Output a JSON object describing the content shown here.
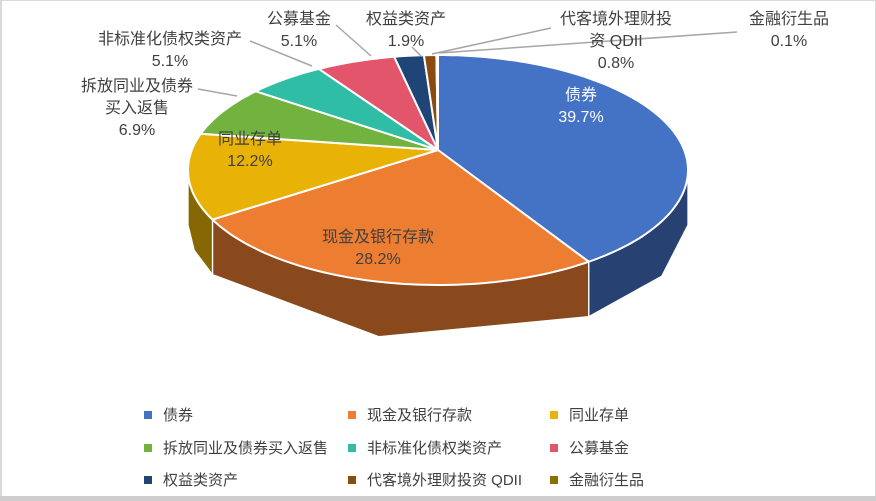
{
  "window": {
    "background": "#FFFFFF",
    "frame_border_color": "#D9D9D9",
    "bottom_edge_color": "#CFCDCD"
  },
  "chart_data": {
    "type": "pie",
    "projection": "3d",
    "title": "",
    "start_angle_deg": 0,
    "direction": "clockwise",
    "legend_position": "bottom",
    "label_text_color": "#404040",
    "leader_line_color": "#A6A6A6",
    "slice_separator_color": "#FFFFFF",
    "slices": [
      {
        "label": "债券",
        "value": 39.7,
        "pct": "39.7%",
        "color": "#4472C4",
        "label_color": "#FFFFFF",
        "label_placement": "inside",
        "label_lines": [
          "债券",
          "39.7%"
        ]
      },
      {
        "label": "现金及银行存款",
        "value": 28.2,
        "pct": "28.2%",
        "color": "#ED7D31",
        "label_color": "#404040",
        "label_placement": "inside",
        "label_lines": [
          "现金及银行存款",
          "28.2%"
        ]
      },
      {
        "label": "同业存单",
        "value": 12.2,
        "pct": "12.2%",
        "color": "#E8B206",
        "label_color": "#404040",
        "label_placement": "inside",
        "label_lines": [
          "同业存单",
          "12.2%"
        ]
      },
      {
        "label": "拆放同业及债券买入返售",
        "value": 6.9,
        "pct": "6.9%",
        "color": "#72B33F",
        "label_color": "#404040",
        "label_placement": "outside",
        "label_lines": [
          "拆放同业及债券",
          "买入返售",
          "6.9%"
        ]
      },
      {
        "label": "非标准化债权类资产",
        "value": 5.1,
        "pct": "5.1%",
        "color": "#2FBDA5",
        "label_color": "#404040",
        "label_placement": "outside",
        "label_lines": [
          "非标准化债权类资产",
          "5.1%"
        ]
      },
      {
        "label": "公募基金",
        "value": 5.1,
        "pct": "5.1%",
        "color": "#E2556A",
        "label_color": "#404040",
        "label_placement": "outside",
        "label_lines": [
          "公募基金",
          "5.1%"
        ]
      },
      {
        "label": "权益类资产",
        "value": 1.9,
        "pct": "1.9%",
        "color": "#1F4576",
        "label_color": "#404040",
        "label_placement": "outside",
        "label_lines": [
          "权益类资产",
          "1.9%"
        ]
      },
      {
        "label": "代客境外理财投资 QDII",
        "value": 0.8,
        "pct": "0.8%",
        "color": "#8A4B0F",
        "label_color": "#404040",
        "label_placement": "outside",
        "label_lines": [
          "代客境外理财投",
          "资 QDII",
          "0.8%"
        ]
      },
      {
        "label": "金融衍生品",
        "value": 0.1,
        "pct": "0.1%",
        "color": "#8A7000",
        "label_color": "#404040",
        "label_placement": "outside",
        "label_lines": [
          "金融衍生品",
          "0.1%"
        ]
      }
    ]
  }
}
